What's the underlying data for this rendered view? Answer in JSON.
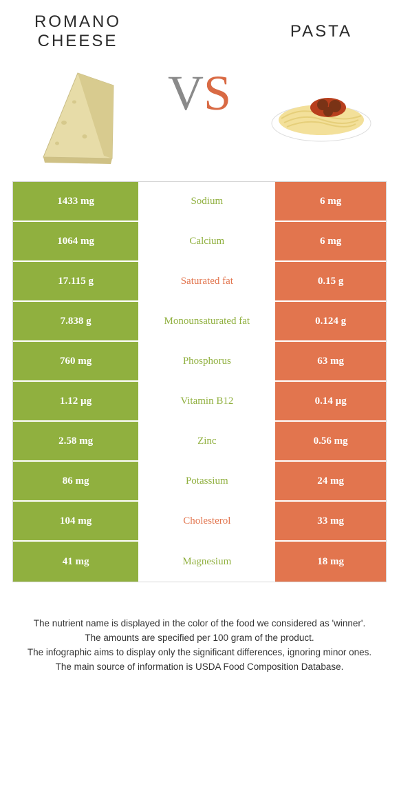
{
  "colors": {
    "green": "#90b03f",
    "orange": "#e2754e",
    "mid_text_green": "#90b03f",
    "mid_text_orange": "#e2754e",
    "border": "#d6d6d6",
    "vs_gray": "#8a8a8a"
  },
  "header": {
    "left_title": "Romano cheese",
    "right_title": "Pasta",
    "vs_v": "V",
    "vs_s": "S"
  },
  "rows": [
    {
      "nutrient": "Sodium",
      "left": "1433 mg",
      "right": "6 mg",
      "winner": "left"
    },
    {
      "nutrient": "Calcium",
      "left": "1064 mg",
      "right": "6 mg",
      "winner": "left"
    },
    {
      "nutrient": "Saturated fat",
      "left": "17.115 g",
      "right": "0.15 g",
      "winner": "right"
    },
    {
      "nutrient": "Monounsaturated fat",
      "left": "7.838 g",
      "right": "0.124 g",
      "winner": "left"
    },
    {
      "nutrient": "Phosphorus",
      "left": "760 mg",
      "right": "63 mg",
      "winner": "left"
    },
    {
      "nutrient": "Vitamin B12",
      "left": "1.12 µg",
      "right": "0.14 µg",
      "winner": "left"
    },
    {
      "nutrient": "Zinc",
      "left": "2.58 mg",
      "right": "0.56 mg",
      "winner": "left"
    },
    {
      "nutrient": "Potassium",
      "left": "86 mg",
      "right": "24 mg",
      "winner": "left"
    },
    {
      "nutrient": "Cholesterol",
      "left": "104 mg",
      "right": "33 mg",
      "winner": "right"
    },
    {
      "nutrient": "Magnesium",
      "left": "41 mg",
      "right": "18 mg",
      "winner": "left"
    }
  ],
  "footnotes": [
    "The nutrient name is displayed in the color of the food we considered as 'winner'.",
    "The amounts are specified per 100 gram of the product.",
    "The infographic aims to display only the significant differences, ignoring minor ones.",
    "The main source of information is USDA Food Composition Database."
  ]
}
